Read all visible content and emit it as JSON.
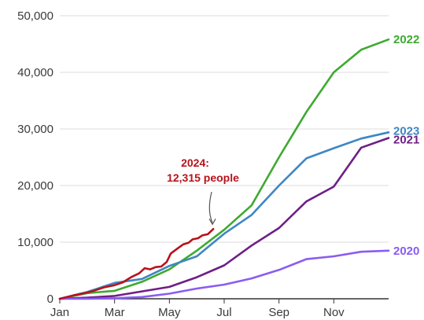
{
  "chart_data": {
    "type": "line",
    "ylim": [
      0,
      50000
    ],
    "y_ticks": [
      0,
      10000,
      20000,
      30000,
      40000,
      50000
    ],
    "y_tick_labels": [
      "0",
      "10,000",
      "20,000",
      "30,000",
      "40,000",
      "50,000"
    ],
    "xlim": [
      1,
      12
    ],
    "x_ticks": [
      1,
      3,
      5,
      7,
      9,
      11
    ],
    "x_tick_labels": [
      "Jan",
      "Mar",
      "May",
      "Jul",
      "Sep",
      "Nov"
    ],
    "grid": true,
    "series": [
      {
        "name": "2022",
        "color": "#3daa2f",
        "points": [
          [
            1,
            0
          ],
          [
            2,
            1000
          ],
          [
            3,
            1400
          ],
          [
            4,
            3000
          ],
          [
            5,
            5200
          ],
          [
            6,
            8500
          ],
          [
            7,
            12200
          ],
          [
            8,
            16500
          ],
          [
            9,
            25000
          ],
          [
            10,
            33000
          ],
          [
            11,
            40000
          ],
          [
            12,
            44000
          ],
          [
            13,
            45800
          ]
        ]
      },
      {
        "name": "2023",
        "color": "#3e86c4",
        "points": [
          [
            1,
            0
          ],
          [
            2,
            1200
          ],
          [
            3,
            2800
          ],
          [
            4,
            3500
          ],
          [
            5,
            5800
          ],
          [
            6,
            7500
          ],
          [
            7,
            11500
          ],
          [
            8,
            14800
          ],
          [
            9,
            20000
          ],
          [
            10,
            24800
          ],
          [
            11,
            26600
          ],
          [
            12,
            28300
          ],
          [
            13,
            29400
          ]
        ]
      },
      {
        "name": "2021",
        "color": "#6e1f86",
        "points": [
          [
            1,
            0
          ],
          [
            2,
            200
          ],
          [
            3,
            500
          ],
          [
            4,
            1300
          ],
          [
            5,
            2100
          ],
          [
            6,
            3800
          ],
          [
            7,
            5900
          ],
          [
            8,
            9400
          ],
          [
            9,
            12500
          ],
          [
            10,
            17200
          ],
          [
            11,
            19800
          ],
          [
            12,
            26700
          ],
          [
            13,
            28400
          ]
        ]
      },
      {
        "name": "2020",
        "color": "#8a5cf1",
        "points": [
          [
            1,
            0
          ],
          [
            2,
            0
          ],
          [
            3,
            100
          ],
          [
            4,
            300
          ],
          [
            5,
            900
          ],
          [
            6,
            1800
          ],
          [
            7,
            2500
          ],
          [
            8,
            3600
          ],
          [
            9,
            5100
          ],
          [
            10,
            7000
          ],
          [
            11,
            7500
          ],
          [
            12,
            8300
          ],
          [
            13,
            8500
          ]
        ]
      },
      {
        "name": "2024",
        "color": "#b8121b",
        "points": [
          [
            1,
            0
          ],
          [
            1.5,
            600
          ],
          [
            2,
            1100
          ],
          [
            2.3,
            1500
          ],
          [
            2.6,
            2000
          ],
          [
            3,
            2400
          ],
          [
            3.3,
            2900
          ],
          [
            3.6,
            3800
          ],
          [
            3.9,
            4500
          ],
          [
            4.1,
            5400
          ],
          [
            4.3,
            5200
          ],
          [
            4.5,
            5600
          ],
          [
            4.7,
            5700
          ],
          [
            4.9,
            6500
          ],
          [
            5.05,
            8000
          ],
          [
            5.3,
            8900
          ],
          [
            5.5,
            9600
          ],
          [
            5.7,
            9900
          ],
          [
            5.85,
            10500
          ],
          [
            6.05,
            10700
          ],
          [
            6.2,
            11200
          ],
          [
            6.4,
            11400
          ],
          [
            6.6,
            12315
          ]
        ]
      }
    ],
    "annotation": {
      "line1": "2024:",
      "line2": "12,315 people",
      "target_x": 6.6,
      "target_y": 12315
    }
  }
}
